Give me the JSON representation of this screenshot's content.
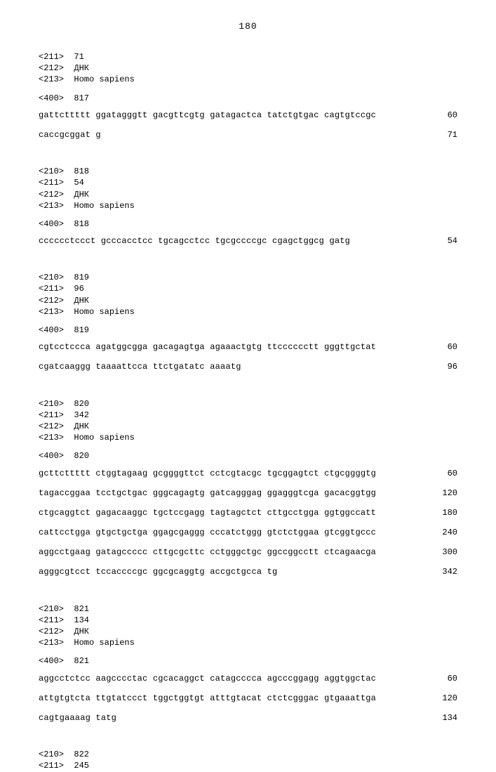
{
  "page_number": "180",
  "records": [
    {
      "headers": [
        "<211>  71",
        "<212>  ДНК",
        "<213>  Homo sapiens"
      ],
      "seq_header": "<400>  817",
      "seq_lines": [
        {
          "text": "gattcttttt ggatagggtt gacgttcgtg gatagactca tatctgtgac cagtgtccgc",
          "num": "60"
        },
        {
          "text": "caccgcggat g",
          "num": "71"
        }
      ]
    },
    {
      "headers": [
        "<210>  818",
        "<211>  54",
        "<212>  ДНК",
        "<213>  Homo sapiens"
      ],
      "seq_header": "<400>  818",
      "seq_lines": [
        {
          "text": "cccccctccct gcccacctcc tgcagcctcc tgcgccccgc cgagctggcg gatg",
          "num": "54"
        }
      ]
    },
    {
      "headers": [
        "<210>  819",
        "<211>  96",
        "<212>  ДНК",
        "<213>  Homo sapiens"
      ],
      "seq_header": "<400>  819",
      "seq_lines": [
        {
          "text": "cgtcctccca agatggcgga gacagagtga agaaactgtg ttcccccctt gggttgctat",
          "num": "60"
        },
        {
          "text": "cgatcaaggg taaaattcca ttctgatatc aaaatg",
          "num": "96"
        }
      ]
    },
    {
      "headers": [
        "<210>  820",
        "<211>  342",
        "<212>  ДНК",
        "<213>  Homo sapiens"
      ],
      "seq_header": "<400>  820",
      "seq_lines": [
        {
          "text": "gcttcttttt ctggtagaag gcggggttct cctcgtacgc tgcggagtct ctgcggggtg",
          "num": "60"
        },
        {
          "text": "tagaccggaa tcctgctgac gggcagagtg gatcagggag ggagggtcga gacacggtgg",
          "num": "120"
        },
        {
          "text": "ctgcaggtct gagacaaggc tgctccgagg tagtagctct cttgcctgga ggtggccatt",
          "num": "180"
        },
        {
          "text": "cattcctgga gtgctgctga ggagcgaggg cccatctggg gtctctggaa gtcggtgccc",
          "num": "240"
        },
        {
          "text": "aggcctgaag gatagccccc cttgcgcttc cctgggctgc ggccggcctt ctcagaacga",
          "num": "300"
        },
        {
          "text": "agggcgtcct tccaccccgc ggcgcaggtg accgctgcca tg",
          "num": "342"
        }
      ]
    },
    {
      "headers": [
        "<210>  821",
        "<211>  134",
        "<212>  ДНК",
        "<213>  Homo sapiens"
      ],
      "seq_header": "<400>  821",
      "seq_lines": [
        {
          "text": "aggcctctcc aagcccctac cgcacaggct catagcccca agcccggagg aggtggctac",
          "num": "60"
        },
        {
          "text": "attgtgtcta ttgtatccct tggctggtgt atttgtacat ctctcgggac gtgaaattga",
          "num": "120"
        },
        {
          "text": "cagtgaaaag tatg",
          "num": "134"
        }
      ]
    },
    {
      "headers": [
        "<210>  822",
        "<211>  245"
      ],
      "seq_header": null,
      "seq_lines": []
    }
  ]
}
